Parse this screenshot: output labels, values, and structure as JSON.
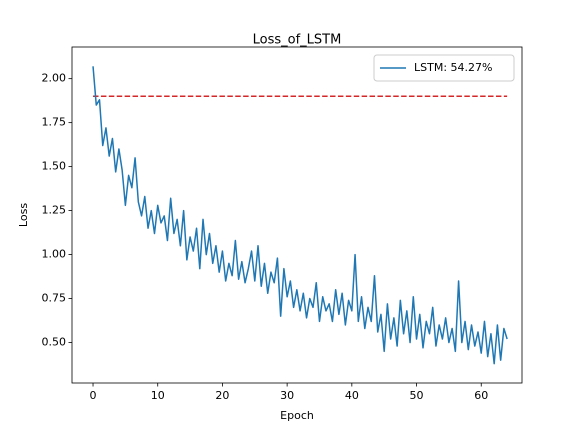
{
  "chart_data": {
    "type": "line",
    "title": "Loss_of_LSTM",
    "xlabel": "Epoch",
    "ylabel": "Loss",
    "x": [
      0,
      0.5,
      1,
      1.5,
      2,
      2.5,
      3,
      3.5,
      4,
      4.5,
      5,
      5.5,
      6,
      6.5,
      7,
      7.5,
      8,
      8.5,
      9,
      9.5,
      10,
      10.5,
      11,
      11.5,
      12,
      12.5,
      13,
      13.5,
      14,
      14.5,
      15,
      15.5,
      16,
      16.5,
      17,
      17.5,
      18,
      18.5,
      19,
      19.5,
      20,
      20.5,
      21,
      21.5,
      22,
      22.5,
      23,
      23.5,
      24,
      24.5,
      25,
      25.5,
      26,
      26.5,
      27,
      27.5,
      28,
      28.5,
      29,
      29.5,
      30,
      30.5,
      31,
      31.5,
      32,
      32.5,
      33,
      33.5,
      34,
      34.5,
      35,
      35.5,
      36,
      36.5,
      37,
      37.5,
      38,
      38.5,
      39,
      39.5,
      40,
      40.5,
      41,
      41.5,
      42,
      42.5,
      43,
      43.5,
      44,
      44.5,
      45,
      45.5,
      46,
      46.5,
      47,
      47.5,
      48,
      48.5,
      49,
      49.5,
      50,
      50.5,
      51,
      51.5,
      52,
      52.5,
      53,
      53.5,
      54,
      54.5,
      55,
      55.5,
      56,
      56.5,
      57,
      57.5,
      58,
      58.5,
      59,
      59.5,
      60,
      60.5,
      61,
      61.5,
      62,
      62.5,
      63,
      63.5,
      64
    ],
    "series": [
      {
        "name": "LSTM: 54.27%",
        "color": "#1f77b4",
        "values": [
          2.07,
          1.85,
          1.88,
          1.62,
          1.72,
          1.56,
          1.66,
          1.47,
          1.6,
          1.48,
          1.28,
          1.45,
          1.38,
          1.55,
          1.3,
          1.22,
          1.33,
          1.15,
          1.25,
          1.12,
          1.28,
          1.18,
          1.22,
          1.08,
          1.32,
          1.12,
          1.2,
          1.05,
          1.25,
          0.97,
          1.1,
          1.02,
          1.15,
          0.92,
          1.2,
          1.0,
          1.12,
          0.95,
          1.05,
          0.9,
          1.02,
          0.85,
          0.95,
          0.88,
          1.08,
          0.86,
          0.96,
          0.84,
          0.92,
          1.02,
          0.85,
          1.05,
          0.82,
          0.95,
          0.78,
          0.9,
          0.84,
          0.98,
          0.65,
          0.92,
          0.76,
          0.85,
          0.7,
          0.8,
          0.68,
          0.78,
          0.64,
          0.75,
          0.7,
          0.84,
          0.62,
          0.76,
          0.68,
          0.72,
          0.62,
          0.8,
          0.66,
          0.78,
          0.6,
          0.74,
          0.68,
          1.0,
          0.62,
          0.76,
          0.58,
          0.7,
          0.62,
          0.88,
          0.56,
          0.66,
          0.45,
          0.72,
          0.52,
          0.64,
          0.48,
          0.74,
          0.55,
          0.68,
          0.5,
          0.76,
          0.52,
          0.66,
          0.47,
          0.62,
          0.55,
          0.7,
          0.48,
          0.6,
          0.52,
          0.64,
          0.5,
          0.58,
          0.45,
          0.85,
          0.5,
          0.62,
          0.46,
          0.6,
          0.48,
          0.56,
          0.44,
          0.62,
          0.42,
          0.55,
          0.38,
          0.6,
          0.4,
          0.58,
          0.52
        ]
      }
    ],
    "reference_lines": [
      {
        "y": 1.9,
        "xmin": 0,
        "xmax": 64,
        "color": "#d62728",
        "style": "dashed"
      }
    ],
    "xlim": [
      -3.25,
      66.3
    ],
    "ylim": [
      0.27,
      2.18
    ],
    "xticks": [
      0,
      10,
      20,
      30,
      40,
      50,
      60
    ],
    "yticks": [
      {
        "value": 0.5,
        "label": "0.50"
      },
      {
        "value": 0.75,
        "label": "0.75"
      },
      {
        "value": 1.0,
        "label": "1.00"
      },
      {
        "value": 1.25,
        "label": "1.25"
      },
      {
        "value": 1.5,
        "label": "1.50"
      },
      {
        "value": 1.75,
        "label": "1.75"
      },
      {
        "value": 2.0,
        "label": "2.00"
      }
    ],
    "legend": "upper right",
    "grid": false
  }
}
